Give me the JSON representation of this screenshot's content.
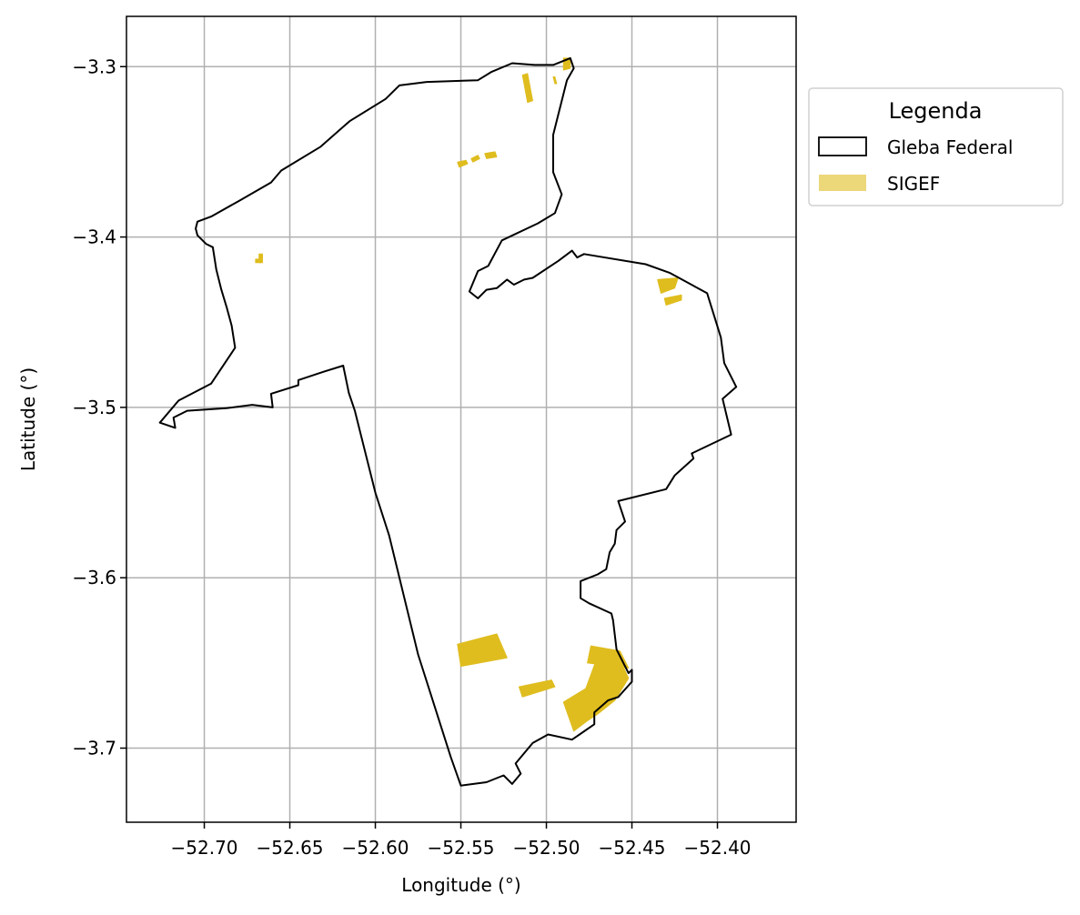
{
  "chart_data": {
    "type": "map",
    "xlabel": "Longitude (°)",
    "ylabel": "Latitude (°)",
    "xlim": [
      -52.7455,
      -52.354
    ],
    "ylim": [
      -3.7435,
      -3.2705
    ],
    "grid": true,
    "x_ticks": [
      {
        "value": -52.7,
        "label": "−52.70"
      },
      {
        "value": -52.65,
        "label": "−52.65"
      },
      {
        "value": -52.6,
        "label": "−52.60"
      },
      {
        "value": -52.55,
        "label": "−52.55"
      },
      {
        "value": -52.5,
        "label": "−52.50"
      },
      {
        "value": -52.45,
        "label": "−52.45"
      },
      {
        "value": -52.4,
        "label": "−52.40"
      }
    ],
    "y_ticks": [
      {
        "value": -3.3,
        "label": "−3.3"
      },
      {
        "value": -3.4,
        "label": "−3.4"
      },
      {
        "value": -3.5,
        "label": "−3.5"
      },
      {
        "value": -3.6,
        "label": "−3.6"
      },
      {
        "value": -3.7,
        "label": "−3.7"
      }
    ],
    "legend": {
      "title": "Legenda",
      "placement": "upper-right-outside",
      "entries": [
        {
          "label": "Gleba Federal",
          "style": "outline",
          "color": "#000000"
        },
        {
          "label": "SIGEF",
          "style": "fill",
          "color": "#dfbd1f"
        }
      ]
    },
    "series": [
      {
        "name": "Gleba Federal",
        "kind": "outline",
        "color": "#000000",
        "polygon": [
          [
            -52.6188,
            -3.4755
          ],
          [
            -52.6155,
            -3.4915
          ],
          [
            -52.612,
            -3.502
          ],
          [
            -52.6,
            -3.55
          ],
          [
            -52.592,
            -3.575
          ],
          [
            -52.575,
            -3.645
          ],
          [
            -52.556,
            -3.705
          ],
          [
            -52.55,
            -3.722
          ],
          [
            -52.535,
            -3.72
          ],
          [
            -52.525,
            -3.716
          ],
          [
            -52.52,
            -3.721
          ],
          [
            -52.515,
            -3.715
          ],
          [
            -52.518,
            -3.709
          ],
          [
            -52.508,
            -3.697
          ],
          [
            -52.499,
            -3.692
          ],
          [
            -52.485,
            -3.695
          ],
          [
            -52.472,
            -3.686
          ],
          [
            -52.472,
            -3.679
          ],
          [
            -52.464,
            -3.672
          ],
          [
            -52.458,
            -3.67
          ],
          [
            -52.45,
            -3.661
          ],
          [
            -52.45,
            -3.654
          ],
          [
            -52.452,
            -3.656
          ],
          [
            -52.459,
            -3.642
          ],
          [
            -52.461,
            -3.625
          ],
          [
            -52.462,
            -3.621
          ],
          [
            -52.475,
            -3.615
          ],
          [
            -52.48,
            -3.612
          ],
          [
            -52.48,
            -3.602
          ],
          [
            -52.47,
            -3.598
          ],
          [
            -52.465,
            -3.595
          ],
          [
            -52.463,
            -3.585
          ],
          [
            -52.46,
            -3.58
          ],
          [
            -52.459,
            -3.572
          ],
          [
            -52.454,
            -3.567
          ],
          [
            -52.458,
            -3.555
          ],
          [
            -52.43,
            -3.548
          ],
          [
            -52.425,
            -3.54
          ],
          [
            -52.414,
            -3.53
          ],
          [
            -52.415,
            -3.527
          ],
          [
            -52.392,
            -3.516
          ],
          [
            -52.397,
            -3.495
          ],
          [
            -52.389,
            -3.488
          ],
          [
            -52.396,
            -3.474
          ],
          [
            -52.398,
            -3.459
          ],
          [
            -52.406,
            -3.433
          ],
          [
            -52.428,
            -3.421
          ],
          [
            -52.442,
            -3.416
          ],
          [
            -52.478,
            -3.41
          ],
          [
            -52.482,
            -3.412
          ],
          [
            -52.485,
            -3.408
          ],
          [
            -52.493,
            -3.414
          ],
          [
            -52.508,
            -3.424
          ],
          [
            -52.513,
            -3.425
          ],
          [
            -52.519,
            -3.428
          ],
          [
            -52.523,
            -3.425
          ],
          [
            -52.529,
            -3.43
          ],
          [
            -52.535,
            -3.431
          ],
          [
            -52.54,
            -3.436
          ],
          [
            -52.545,
            -3.432
          ],
          [
            -52.54,
            -3.42
          ],
          [
            -52.534,
            -3.417
          ],
          [
            -52.526,
            -3.402
          ],
          [
            -52.505,
            -3.392
          ],
          [
            -52.495,
            -3.386
          ],
          [
            -52.491,
            -3.375
          ],
          [
            -52.496,
            -3.362
          ],
          [
            -52.496,
            -3.34
          ],
          [
            -52.488,
            -3.308
          ],
          [
            -52.484,
            -3.301
          ],
          [
            -52.486,
            -3.295
          ],
          [
            -52.496,
            -3.299
          ],
          [
            -52.507,
            -3.299
          ],
          [
            -52.52,
            -3.298
          ],
          [
            -52.532,
            -3.303
          ],
          [
            -52.54,
            -3.308
          ],
          [
            -52.57,
            -3.309
          ],
          [
            -52.586,
            -3.311
          ],
          [
            -52.594,
            -3.319
          ],
          [
            -52.615,
            -3.332
          ],
          [
            -52.632,
            -3.347
          ],
          [
            -52.655,
            -3.361
          ],
          [
            -52.661,
            -3.368
          ],
          [
            -52.68,
            -3.379
          ],
          [
            -52.696,
            -3.388
          ],
          [
            -52.704,
            -3.391
          ],
          [
            -52.705,
            -3.395
          ],
          [
            -52.704,
            -3.399
          ],
          [
            -52.699,
            -3.404
          ],
          [
            -52.695,
            -3.406
          ],
          [
            -52.693,
            -3.419
          ],
          [
            -52.69,
            -3.431
          ],
          [
            -52.687,
            -3.441
          ],
          [
            -52.684,
            -3.452
          ],
          [
            -52.682,
            -3.465
          ],
          [
            -52.696,
            -3.486
          ],
          [
            -52.715,
            -3.496
          ],
          [
            -52.726,
            -3.509
          ],
          [
            -52.717,
            -3.512
          ],
          [
            -52.718,
            -3.506
          ],
          [
            -52.71,
            -3.502
          ],
          [
            -52.687,
            -3.5005
          ],
          [
            -52.672,
            -3.4985
          ],
          [
            -52.66,
            -3.5
          ],
          [
            -52.661,
            -3.492
          ],
          [
            -52.645,
            -3.487
          ],
          [
            -52.645,
            -3.484
          ],
          [
            -52.63,
            -3.479
          ]
        ]
      },
      {
        "name": "SIGEF",
        "kind": "fill",
        "color": "#dfbd1f",
        "polygons": [
          [
            [
              -52.552,
              -3.639
            ],
            [
              -52.529,
              -3.633
            ],
            [
              -52.523,
              -3.647
            ],
            [
              -52.55,
              -3.652
            ]
          ],
          [
            [
              -52.516,
              -3.664
            ],
            [
              -52.497,
              -3.66
            ],
            [
              -52.495,
              -3.664
            ],
            [
              -52.514,
              -3.67
            ]
          ],
          [
            [
              -52.474,
              -3.64
            ],
            [
              -52.457,
              -3.643
            ],
            [
              -52.452,
              -3.653
            ],
            [
              -52.476,
              -3.65
            ]
          ],
          [
            [
              -52.47,
              -3.646
            ],
            [
              -52.456,
              -3.65
            ],
            [
              -52.452,
              -3.659
            ],
            [
              -52.46,
              -3.672
            ],
            [
              -52.47,
              -3.68
            ],
            [
              -52.476,
              -3.684
            ],
            [
              -52.484,
              -3.69
            ],
            [
              -52.49,
              -3.673
            ],
            [
              -52.477,
              -3.665
            ]
          ],
          [
            [
              -52.435,
              -3.425
            ],
            [
              -52.423,
              -3.424
            ],
            [
              -52.425,
              -3.43
            ],
            [
              -52.433,
              -3.433
            ]
          ],
          [
            [
              -52.431,
              -3.436
            ],
            [
              -52.421,
              -3.434
            ],
            [
              -52.421,
              -3.437
            ],
            [
              -52.43,
              -3.44
            ]
          ],
          [
            [
              -52.514,
              -3.305
            ],
            [
              -52.511,
              -3.304
            ],
            [
              -52.508,
              -3.32
            ],
            [
              -52.511,
              -3.321
            ]
          ],
          [
            [
              -52.49,
              -3.295
            ],
            [
              -52.486,
              -3.295
            ],
            [
              -52.486,
              -3.301
            ],
            [
              -52.49,
              -3.302
            ]
          ],
          [
            [
              -52.496,
              -3.306
            ],
            [
              -52.495,
              -3.306
            ],
            [
              -52.494,
              -3.31
            ],
            [
              -52.495,
              -3.31
            ]
          ],
          [
            [
              -52.552,
              -3.356
            ],
            [
              -52.547,
              -3.355
            ],
            [
              -52.546,
              -3.357
            ],
            [
              -52.551,
              -3.359
            ]
          ],
          [
            [
              -52.544,
              -3.354
            ],
            [
              -52.54,
              -3.352
            ],
            [
              -52.539,
              -3.354
            ],
            [
              -52.543,
              -3.356
            ]
          ],
          [
            [
              -52.536,
              -3.351
            ],
            [
              -52.53,
              -3.35
            ],
            [
              -52.529,
              -3.353
            ],
            [
              -52.535,
              -3.354
            ]
          ],
          [
            [
              -52.668,
              -3.41
            ],
            [
              -52.666,
              -3.41
            ],
            [
              -52.666,
              -3.415
            ],
            [
              -52.668,
              -3.415
            ]
          ],
          [
            [
              -52.67,
              -3.413
            ],
            [
              -52.667,
              -3.413
            ],
            [
              -52.667,
              -3.415
            ],
            [
              -52.67,
              -3.415
            ]
          ]
        ]
      }
    ]
  }
}
